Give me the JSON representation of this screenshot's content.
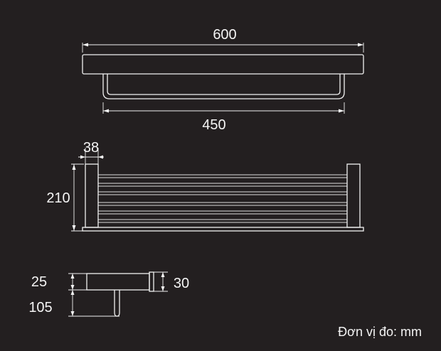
{
  "dimensions": {
    "top_length": "600",
    "bar_length": "450",
    "depth": "38",
    "height": "210",
    "thickness_top": "25",
    "thickness_side": "30",
    "drop": "105"
  },
  "unit_note": "Đơn vị đo: mm",
  "colors": {
    "background": "#231f20",
    "line": "#f2f2f2"
  }
}
